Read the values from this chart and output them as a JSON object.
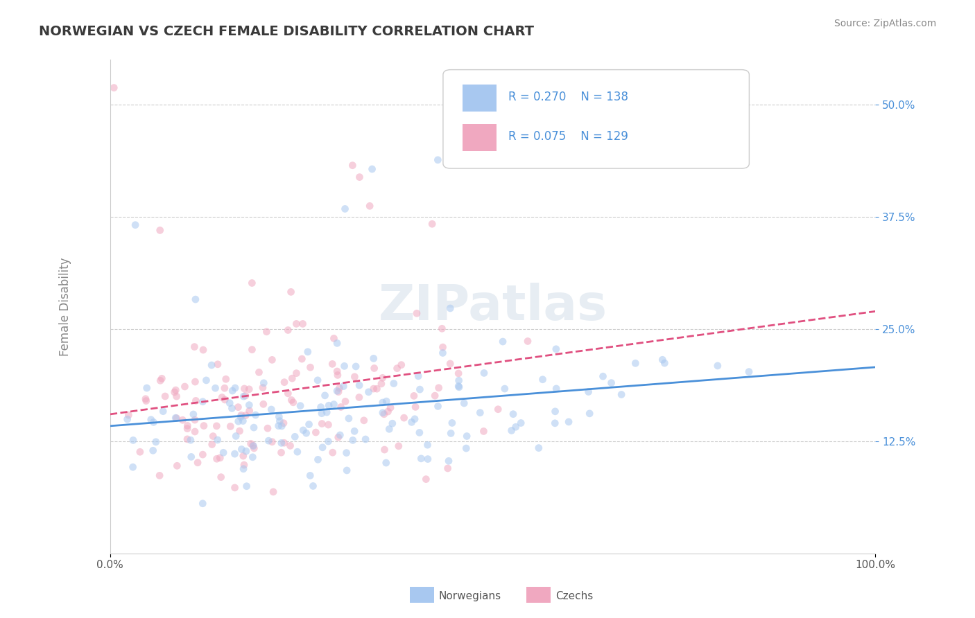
{
  "title": "NORWEGIAN VS CZECH FEMALE DISABILITY CORRELATION CHART",
  "source": "Source: ZipAtlas.com",
  "xlabel": "",
  "ylabel": "Female Disability",
  "title_color": "#3a3a3a",
  "title_fontsize": 14,
  "background_color": "#ffffff",
  "plot_bg_color": "#ffffff",
  "norwegians": {
    "R": 0.27,
    "N": 138,
    "color": "#a8c8f0",
    "line_color": "#4a90d9",
    "label": "Norwegians"
  },
  "czechs": {
    "R": 0.075,
    "N": 129,
    "color": "#f0a8c0",
    "line_color": "#e05080",
    "label": "Czechs"
  },
  "x_min": 0.0,
  "x_max": 1.0,
  "y_min": 0.0,
  "y_max": 0.55,
  "grid_color": "#cccccc",
  "watermark": "ZIPatlas",
  "legend_box_color_norwegian": "#a8c8f0",
  "legend_box_color_czech": "#f0a8c0",
  "legend_text_color": "#4a90d9",
  "x_tick_labels": [
    "0.0%",
    "100.0%"
  ],
  "y_tick_labels": [
    "12.5%",
    "25.0%",
    "37.5%",
    "50.0%"
  ],
  "y_tick_values": [
    0.125,
    0.25,
    0.375,
    0.5
  ],
  "marker_size": 60,
  "alpha": 0.55
}
